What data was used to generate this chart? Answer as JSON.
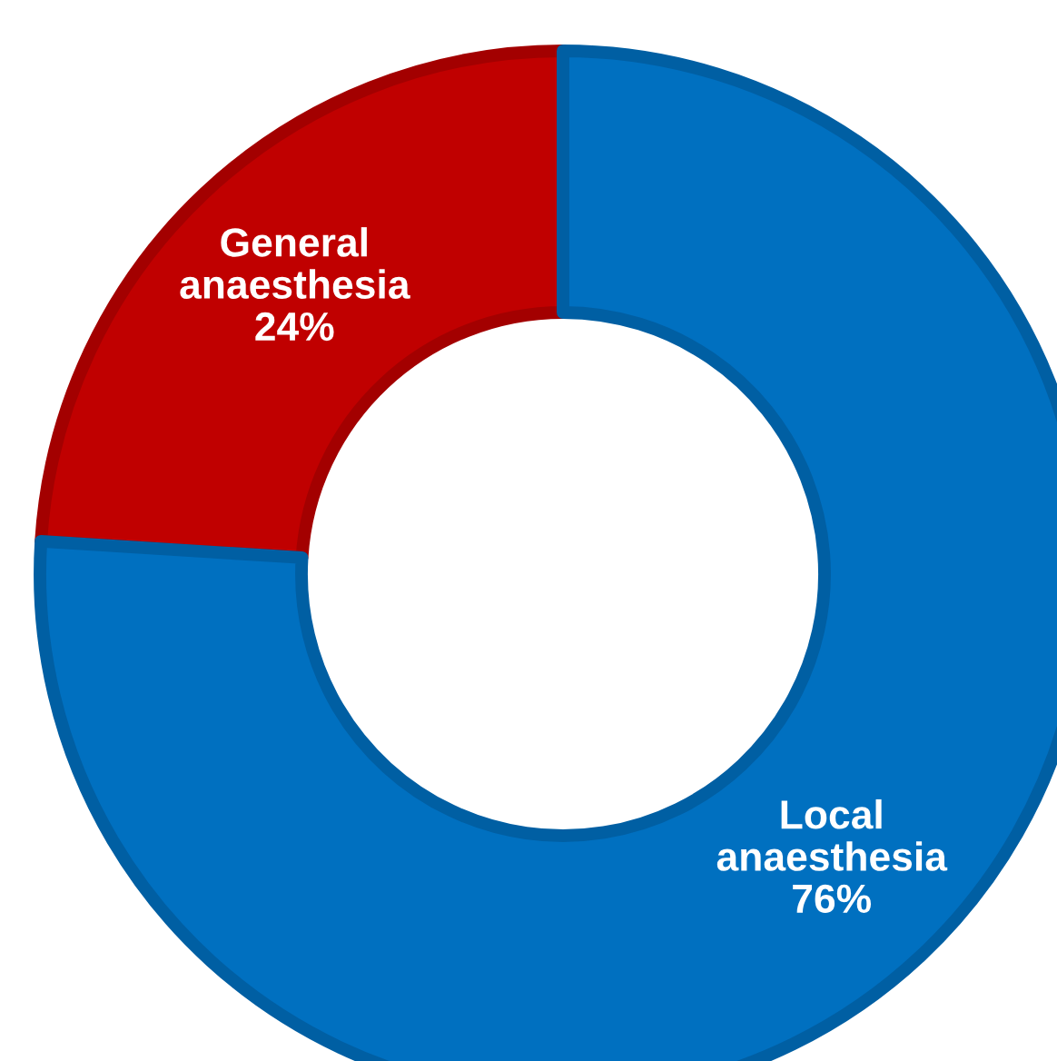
{
  "chart_data": {
    "type": "donut",
    "categories": [
      "General anaesthesia",
      "Local anaesthesia"
    ],
    "values": [
      24,
      76
    ],
    "value_labels": [
      "24%",
      "76%"
    ],
    "colors": [
      "#c00000",
      "#0070c0"
    ],
    "legend": false
  }
}
